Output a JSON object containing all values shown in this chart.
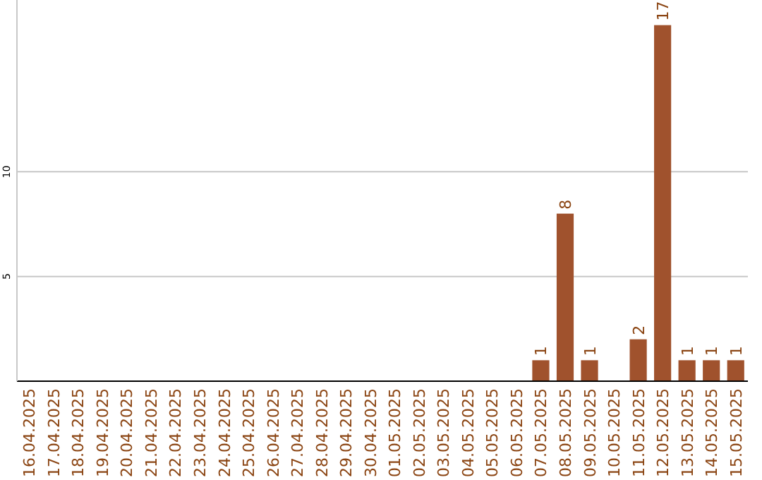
{
  "chart_data": {
    "type": "bar",
    "categories": [
      "16.04.2025",
      "17.04.2025",
      "18.04.2025",
      "19.04.2025",
      "20.04.2025",
      "21.04.2025",
      "22.04.2025",
      "23.04.2025",
      "24.04.2025",
      "25.04.2025",
      "26.04.2025",
      "27.04.2025",
      "28.04.2025",
      "29.04.2025",
      "30.04.2025",
      "01.05.2025",
      "02.05.2025",
      "03.05.2025",
      "04.05.2025",
      "05.05.2025",
      "06.05.2025",
      "07.05.2025",
      "08.05.2025",
      "09.05.2025",
      "10.05.2025",
      "11.05.2025",
      "12.05.2025",
      "13.05.2025",
      "14.05.2025",
      "15.05.2025"
    ],
    "values": [
      0,
      0,
      0,
      0,
      0,
      0,
      0,
      0,
      0,
      0,
      0,
      0,
      0,
      0,
      0,
      0,
      0,
      0,
      0,
      0,
      0,
      1,
      8,
      1,
      0,
      2,
      17,
      1,
      1,
      1
    ],
    "value_labels": [
      null,
      null,
      null,
      null,
      null,
      null,
      null,
      null,
      null,
      null,
      null,
      null,
      null,
      null,
      null,
      null,
      null,
      null,
      null,
      null,
      null,
      "1",
      "8",
      "1",
      null,
      "2",
      "17",
      "1",
      "1",
      "1"
    ],
    "color": "#a0522d",
    "ylim": [
      0,
      18.2
    ],
    "yticks": [
      5,
      10
    ],
    "grid": "y"
  }
}
